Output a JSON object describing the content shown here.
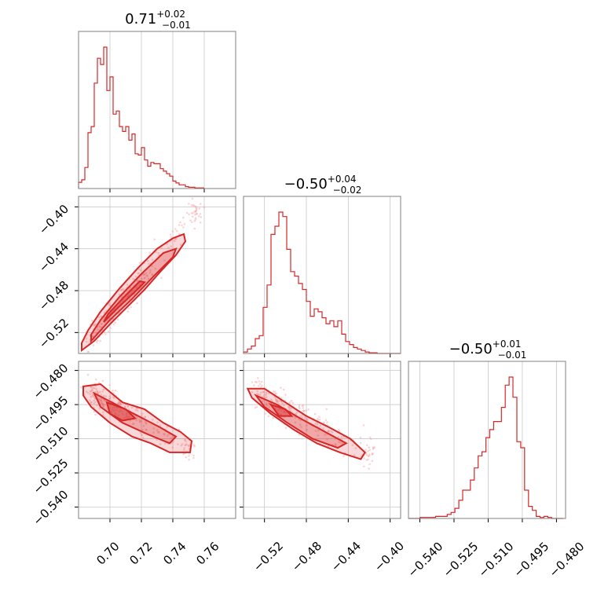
{
  "chart_data": {
    "type": "corner",
    "color": "#d62728",
    "grid": true,
    "parameters": [
      {
        "range": [
          0.68,
          0.78
        ],
        "ticks": [
          0.7,
          0.72,
          0.74,
          0.76
        ],
        "tick_labels": [
          "0.70",
          "0.72",
          "0.74",
          "0.76"
        ]
      },
      {
        "range": [
          -0.54,
          -0.39
        ],
        "ticks": [
          -0.52,
          -0.48,
          -0.44,
          -0.4
        ],
        "tick_labels": [
          "−0.52",
          "−0.48",
          "−0.44",
          "−0.40"
        ]
      },
      {
        "range": [
          -0.545,
          -0.476
        ],
        "ticks": [
          -0.54,
          -0.525,
          -0.51,
          -0.495,
          -0.48
        ],
        "tick_labels": [
          "−0.540",
          "−0.525",
          "−0.510",
          "−0.495",
          "−0.480"
        ]
      }
    ],
    "titles": [
      {
        "value": "0.71",
        "plus": "+0.02",
        "minus": "−0.01"
      },
      {
        "value": "−0.50",
        "plus": "+0.04",
        "minus": "−0.02"
      },
      {
        "value": "−0.50",
        "plus": "+0.01",
        "minus": "−0.01"
      }
    ],
    "histograms": [
      {
        "edges_start": 0.68,
        "bin_width": 0.002,
        "counts": [
          10,
          14,
          34,
          90,
          100,
          170,
          210,
          200,
          228,
          158,
          180,
          120,
          125,
          100,
          92,
          100,
          78,
          88,
          56,
          54,
          66,
          46,
          36,
          42,
          40,
          40,
          32,
          28,
          24,
          20,
          12,
          9,
          6,
          6,
          3,
          2,
          2,
          1,
          1,
          1
        ]
      },
      {
        "edges_start": -0.54,
        "bin_width": 0.00375,
        "counts": [
          2,
          6,
          10,
          20,
          24,
          62,
          92,
          160,
          171,
          190,
          184,
          140,
          110,
          104,
          94,
          86,
          70,
          50,
          60,
          56,
          48,
          40,
          44,
          36,
          44,
          26,
          16,
          12,
          8,
          6,
          4,
          2,
          1,
          1,
          0,
          0,
          0,
          0,
          0,
          0
        ]
      },
      {
        "edges_start": -0.545,
        "bin_width": 0.0017,
        "counts": [
          0,
          0,
          0,
          1,
          1,
          1,
          1,
          2,
          2,
          2,
          4,
          6,
          10,
          18,
          28,
          28,
          38,
          50,
          62,
          66,
          80,
          88,
          96,
          96,
          110,
          132,
          140,
          120,
          76,
          70,
          28,
          12,
          8,
          2,
          1,
          2,
          1,
          0,
          0,
          0
        ]
      }
    ],
    "scatter_pairs": [
      {
        "x_param": 0,
        "y_param": 1,
        "trend": {
          "x0": 0.683,
          "y0": -0.532,
          "x1": 0.755,
          "y1": -0.405
        },
        "spread": 0.006
      },
      {
        "x_param": 0,
        "y_param": 2,
        "trend": {
          "x0": 0.683,
          "y0": -0.488,
          "x1": 0.75,
          "y1": -0.514
        },
        "spread": 0.003
      },
      {
        "x_param": 1,
        "y_param": 2,
        "trend": {
          "x0": -0.535,
          "y0": -0.488,
          "x1": -0.42,
          "y1": -0.516
        },
        "spread": 0.003
      }
    ],
    "contours": [
      {
        "x_param": 0,
        "y_param": 1,
        "outer": [
          [
            0.682,
            -0.537
          ],
          [
            0.69,
            -0.528
          ],
          [
            0.7,
            -0.512
          ],
          [
            0.712,
            -0.494
          ],
          [
            0.722,
            -0.479
          ],
          [
            0.732,
            -0.462
          ],
          [
            0.742,
            -0.446
          ],
          [
            0.748,
            -0.433
          ],
          [
            0.747,
            -0.426
          ],
          [
            0.74,
            -0.43
          ],
          [
            0.73,
            -0.44
          ],
          [
            0.718,
            -0.458
          ],
          [
            0.706,
            -0.478
          ],
          [
            0.694,
            -0.5
          ],
          [
            0.686,
            -0.518
          ],
          [
            0.682,
            -0.53
          ]
        ],
        "mid": [
          [
            0.688,
            -0.528
          ],
          [
            0.7,
            -0.508
          ],
          [
            0.714,
            -0.488
          ],
          [
            0.728,
            -0.466
          ],
          [
            0.74,
            -0.448
          ],
          [
            0.742,
            -0.44
          ],
          [
            0.734,
            -0.444
          ],
          [
            0.72,
            -0.464
          ],
          [
            0.706,
            -0.486
          ],
          [
            0.694,
            -0.508
          ],
          [
            0.688,
            -0.522
          ]
        ],
        "inner": [
          [
            0.696,
            -0.51
          ],
          [
            0.706,
            -0.495
          ],
          [
            0.716,
            -0.481
          ],
          [
            0.722,
            -0.472
          ],
          [
            0.719,
            -0.471
          ],
          [
            0.709,
            -0.486
          ],
          [
            0.699,
            -0.502
          ]
        ]
      },
      {
        "x_param": 0,
        "y_param": 2,
        "outer": [
          [
            0.683,
            -0.487
          ],
          [
            0.694,
            -0.486
          ],
          [
            0.708,
            -0.494
          ],
          [
            0.722,
            -0.497
          ],
          [
            0.734,
            -0.503
          ],
          [
            0.745,
            -0.507
          ],
          [
            0.752,
            -0.511
          ],
          [
            0.751,
            -0.516
          ],
          [
            0.738,
            -0.516
          ],
          [
            0.726,
            -0.512
          ],
          [
            0.714,
            -0.509
          ],
          [
            0.7,
            -0.503
          ],
          [
            0.688,
            -0.496
          ],
          [
            0.683,
            -0.491
          ]
        ],
        "mid": [
          [
            0.69,
            -0.49
          ],
          [
            0.704,
            -0.495
          ],
          [
            0.718,
            -0.5
          ],
          [
            0.732,
            -0.505
          ],
          [
            0.742,
            -0.509
          ],
          [
            0.738,
            -0.512
          ],
          [
            0.724,
            -0.508
          ],
          [
            0.708,
            -0.503
          ],
          [
            0.694,
            -0.496
          ]
        ],
        "inner": [
          [
            0.698,
            -0.494
          ],
          [
            0.71,
            -0.497
          ],
          [
            0.716,
            -0.501
          ],
          [
            0.708,
            -0.502
          ],
          [
            0.7,
            -0.499
          ]
        ]
      },
      {
        "x_param": 1,
        "y_param": 2,
        "outer": [
          [
            -0.536,
            -0.488
          ],
          [
            -0.52,
            -0.488
          ],
          [
            -0.5,
            -0.494
          ],
          [
            -0.48,
            -0.5
          ],
          [
            -0.458,
            -0.505
          ],
          [
            -0.438,
            -0.51
          ],
          [
            -0.424,
            -0.516
          ],
          [
            -0.428,
            -0.519
          ],
          [
            -0.448,
            -0.516
          ],
          [
            -0.47,
            -0.512
          ],
          [
            -0.492,
            -0.506
          ],
          [
            -0.514,
            -0.499
          ],
          [
            -0.532,
            -0.492
          ]
        ],
        "mid": [
          [
            -0.528,
            -0.491
          ],
          [
            -0.508,
            -0.495
          ],
          [
            -0.486,
            -0.501
          ],
          [
            -0.462,
            -0.507
          ],
          [
            -0.442,
            -0.512
          ],
          [
            -0.45,
            -0.514
          ],
          [
            -0.474,
            -0.51
          ],
          [
            -0.498,
            -0.503
          ],
          [
            -0.52,
            -0.496
          ]
        ],
        "inner": [
          [
            -0.514,
            -0.495
          ],
          [
            -0.5,
            -0.497
          ],
          [
            -0.494,
            -0.5
          ],
          [
            -0.506,
            -0.5
          ]
        ]
      }
    ]
  }
}
